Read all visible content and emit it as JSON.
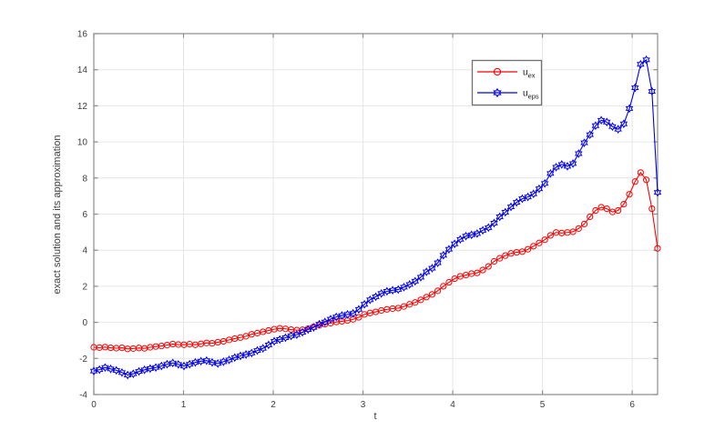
{
  "figure": {
    "background": "#ffffff",
    "axis_color": "#8c8c8c",
    "grid_color": "#e6e6e6",
    "tick_label_color": "#3d3d3d",
    "legend_background": "#ffffff",
    "legend_border_color": "#707070"
  },
  "chart_data": {
    "type": "line",
    "title": "",
    "xlabel": "t",
    "ylabel": "exact solution and its approximation",
    "xlim": [
      0,
      6.2832
    ],
    "ylim": [
      -4,
      16
    ],
    "xticks": [
      0,
      1,
      2,
      3,
      4,
      5,
      6
    ],
    "yticks": [
      -4,
      -2,
      0,
      2,
      4,
      6,
      8,
      10,
      12,
      14,
      16
    ],
    "grid": true,
    "legend_position": "upper-right-inside",
    "x": [
      0,
      0.063,
      0.126,
      0.188,
      0.251,
      0.314,
      0.377,
      0.44,
      0.503,
      0.565,
      0.628,
      0.691,
      0.754,
      0.817,
      0.88,
      0.942,
      1.005,
      1.068,
      1.131,
      1.194,
      1.257,
      1.319,
      1.382,
      1.445,
      1.508,
      1.571,
      1.634,
      1.696,
      1.759,
      1.822,
      1.885,
      1.948,
      2.011,
      2.073,
      2.136,
      2.199,
      2.262,
      2.325,
      2.388,
      2.45,
      2.513,
      2.576,
      2.639,
      2.702,
      2.765,
      2.827,
      2.89,
      2.953,
      3.016,
      3.079,
      3.142,
      3.204,
      3.267,
      3.33,
      3.393,
      3.456,
      3.519,
      3.581,
      3.644,
      3.707,
      3.77,
      3.833,
      3.896,
      3.958,
      4.021,
      4.084,
      4.147,
      4.21,
      4.272,
      4.335,
      4.398,
      4.461,
      4.524,
      4.586,
      4.649,
      4.712,
      4.775,
      4.838,
      4.9,
      4.963,
      5.026,
      5.089,
      5.152,
      5.215,
      5.278,
      5.34,
      5.403,
      5.466,
      5.529,
      5.592,
      5.655,
      5.717,
      5.78,
      5.843,
      5.906,
      5.969,
      6.032,
      6.094,
      6.157,
      6.22,
      6.283
    ],
    "series": [
      {
        "name": "u_ex",
        "label_base": "u",
        "label_sub": "ex",
        "color": "#ff0000",
        "marker": "circle",
        "values": [
          -1.38,
          -1.4,
          -1.37,
          -1.41,
          -1.43,
          -1.41,
          -1.47,
          -1.45,
          -1.42,
          -1.44,
          -1.38,
          -1.34,
          -1.31,
          -1.26,
          -1.2,
          -1.23,
          -1.24,
          -1.21,
          -1.24,
          -1.19,
          -1.14,
          -1.16,
          -1.1,
          -1.05,
          -0.97,
          -0.9,
          -0.84,
          -0.77,
          -0.66,
          -0.6,
          -0.52,
          -0.45,
          -0.38,
          -0.33,
          -0.36,
          -0.4,
          -0.43,
          -0.41,
          -0.35,
          -0.24,
          -0.16,
          -0.1,
          -0.04,
          0.02,
          0.06,
          0.1,
          0.17,
          0.28,
          0.44,
          0.52,
          0.58,
          0.66,
          0.72,
          0.76,
          0.79,
          0.88,
          1.0,
          1.1,
          1.25,
          1.4,
          1.55,
          1.75,
          2.0,
          2.22,
          2.42,
          2.55,
          2.62,
          2.7,
          2.74,
          2.9,
          3.1,
          3.38,
          3.55,
          3.7,
          3.82,
          3.88,
          3.92,
          4.05,
          4.22,
          4.4,
          4.58,
          4.82,
          4.98,
          4.95,
          4.98,
          5.02,
          5.2,
          5.45,
          5.85,
          6.2,
          6.38,
          6.3,
          6.12,
          6.2,
          6.55,
          7.1,
          7.8,
          8.3,
          7.9,
          6.3,
          4.1
        ]
      },
      {
        "name": "u_eps",
        "label_base": "u",
        "label_sub": "eps",
        "color": "#0000ee",
        "marker": "hexagram",
        "values": [
          -2.7,
          -2.62,
          -2.5,
          -2.58,
          -2.66,
          -2.78,
          -2.92,
          -2.85,
          -2.72,
          -2.63,
          -2.56,
          -2.5,
          -2.42,
          -2.32,
          -2.25,
          -2.33,
          -2.42,
          -2.32,
          -2.22,
          -2.15,
          -2.12,
          -2.22,
          -2.28,
          -2.18,
          -2.08,
          -1.95,
          -1.86,
          -1.78,
          -1.7,
          -1.56,
          -1.44,
          -1.25,
          -1.05,
          -0.95,
          -0.85,
          -0.75,
          -0.68,
          -0.55,
          -0.4,
          -0.28,
          -0.1,
          0.02,
          0.18,
          0.3,
          0.38,
          0.44,
          0.5,
          0.72,
          1.0,
          1.25,
          1.42,
          1.6,
          1.72,
          1.78,
          1.82,
          1.95,
          2.1,
          2.28,
          2.5,
          2.8,
          3.0,
          3.3,
          3.72,
          4.05,
          4.35,
          4.6,
          4.78,
          4.85,
          4.92,
          5.1,
          5.25,
          5.5,
          5.85,
          6.1,
          6.4,
          6.65,
          6.85,
          6.95,
          7.12,
          7.4,
          7.7,
          8.25,
          8.6,
          8.75,
          8.65,
          8.8,
          9.35,
          9.95,
          10.4,
          10.9,
          11.2,
          11.1,
          10.85,
          10.7,
          11.0,
          11.85,
          13.0,
          14.3,
          14.55,
          12.8,
          7.2
        ]
      }
    ]
  }
}
